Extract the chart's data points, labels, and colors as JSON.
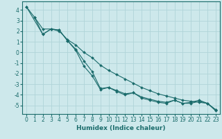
{
  "xlabel": "Humidex (Indice chaleur)",
  "background_color": "#cde8eb",
  "grid_color": "#b0d4d8",
  "line_color": "#1a6b6b",
  "line1_x": [
    0,
    1,
    2,
    3,
    4,
    5,
    6,
    7,
    8,
    9,
    10,
    11,
    12,
    13,
    14,
    15,
    16,
    17,
    18,
    19,
    20,
    21,
    22,
    23
  ],
  "line1_y": [
    4.3,
    3.3,
    2.2,
    2.2,
    2.0,
    1.2,
    0.7,
    0.0,
    -0.5,
    -1.2,
    -1.7,
    -2.1,
    -2.5,
    -2.9,
    -3.3,
    -3.6,
    -3.9,
    -4.1,
    -4.3,
    -4.5,
    -4.6,
    -4.7,
    -4.8,
    -5.4
  ],
  "line2_x": [
    1,
    2,
    3,
    4,
    5,
    6,
    7,
    8,
    9,
    10,
    11,
    12,
    13,
    14,
    15,
    16,
    17,
    18,
    19,
    20,
    21,
    22,
    23
  ],
  "line2_y": [
    3.3,
    1.7,
    2.2,
    2.1,
    1.1,
    0.3,
    -0.8,
    -1.8,
    -3.4,
    -3.3,
    -3.6,
    -3.9,
    -3.8,
    -4.2,
    -4.4,
    -4.6,
    -4.7,
    -4.5,
    -4.8,
    -4.8,
    -4.6,
    -4.8,
    -5.4
  ],
  "line3_x": [
    0,
    2,
    3,
    4,
    5,
    6,
    7,
    8,
    9,
    10,
    11,
    12,
    13,
    14,
    15,
    16,
    17,
    18,
    19,
    20,
    21,
    22,
    23
  ],
  "line3_y": [
    4.3,
    1.7,
    2.2,
    2.1,
    1.1,
    0.2,
    -1.3,
    -2.2,
    -3.5,
    -3.3,
    -3.7,
    -4.0,
    -3.8,
    -4.3,
    -4.5,
    -4.7,
    -4.8,
    -4.5,
    -4.8,
    -4.7,
    -4.5,
    -4.8,
    -5.5
  ],
  "ylim": [
    -5.8,
    4.8
  ],
  "xlim": [
    -0.5,
    23.5
  ],
  "yticks": [
    -5,
    -4,
    -3,
    -2,
    -1,
    0,
    1,
    2,
    3,
    4
  ],
  "xticks": [
    0,
    1,
    2,
    3,
    4,
    5,
    6,
    7,
    8,
    9,
    10,
    11,
    12,
    13,
    14,
    15,
    16,
    17,
    18,
    19,
    20,
    21,
    22,
    23
  ],
  "marker": "D",
  "marker_size": 2.0,
  "line_width": 0.8,
  "xlabel_fontsize": 6.5,
  "tick_fontsize": 5.5
}
